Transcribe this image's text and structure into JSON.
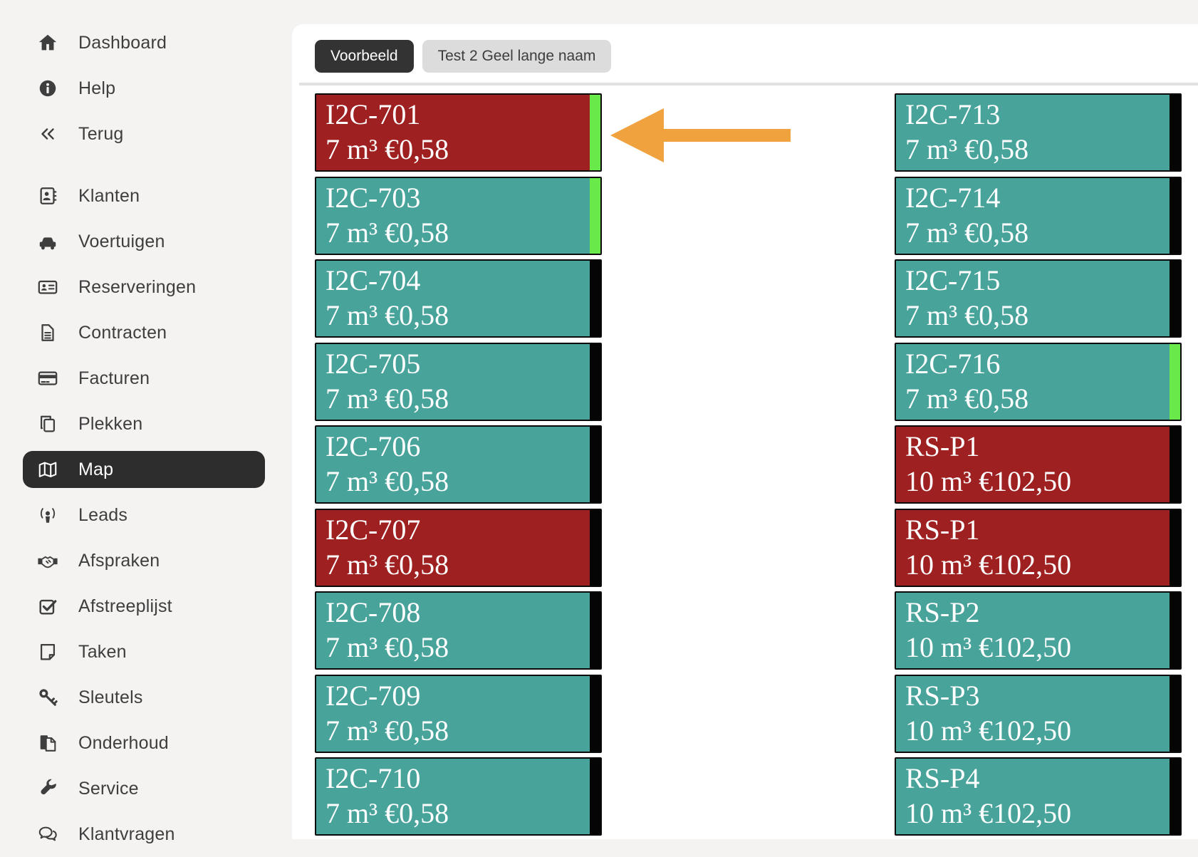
{
  "sidebar": {
    "items": [
      {
        "label": "Dashboard",
        "icon": "home-icon",
        "section": 1,
        "active": false
      },
      {
        "label": "Help",
        "icon": "info-circle-icon",
        "section": 1,
        "active": false
      },
      {
        "label": "Terug",
        "icon": "angles-left-icon",
        "section": 1,
        "active": false
      },
      {
        "label": "Klanten",
        "icon": "address-book-icon",
        "section": 2,
        "active": false
      },
      {
        "label": "Voertuigen",
        "icon": "car-icon",
        "section": 2,
        "active": false
      },
      {
        "label": "Reserveringen",
        "icon": "address-card-icon",
        "section": 2,
        "active": false
      },
      {
        "label": "Contracten",
        "icon": "file-lines-icon",
        "section": 2,
        "active": false
      },
      {
        "label": "Facturen",
        "icon": "credit-card-icon",
        "section": 2,
        "active": false
      },
      {
        "label": "Plekken",
        "icon": "copy-icon",
        "section": 2,
        "active": false
      },
      {
        "label": "Map",
        "icon": "map-icon",
        "section": 2,
        "active": true
      },
      {
        "label": "Leads",
        "icon": "podcast-icon",
        "section": 2,
        "active": false
      },
      {
        "label": "Afspraken",
        "icon": "handshake-icon",
        "section": 2,
        "active": false
      },
      {
        "label": "Afstreeplijst",
        "icon": "check-square-icon",
        "section": 2,
        "active": false
      },
      {
        "label": "Taken",
        "icon": "sticky-note-icon",
        "section": 2,
        "active": false
      },
      {
        "label": "Sleutels",
        "icon": "key-icon",
        "section": 2,
        "active": false
      },
      {
        "label": "Onderhoud",
        "icon": "file-copy-icon",
        "section": 2,
        "active": false
      },
      {
        "label": "Service",
        "icon": "wrench-icon",
        "section": 2,
        "active": false
      },
      {
        "label": "Klantvragen",
        "icon": "comments-icon",
        "section": 2,
        "active": false
      }
    ]
  },
  "tabs": [
    {
      "label": "Voorbeeld",
      "active": true
    },
    {
      "label": "Test 2 Geel lange naam",
      "active": false
    }
  ],
  "map": {
    "columns": [
      {
        "units": [
          {
            "name": "I2C-701",
            "details": "7 m³ €0,58",
            "color": "#9e2020",
            "strip": "#69e94a"
          },
          {
            "name": "I2C-703",
            "details": "7 m³ €0,58",
            "color": "#48a39b",
            "strip": "#69e94a"
          },
          {
            "name": "I2C-704",
            "details": "7 m³ €0,58",
            "color": "#48a39b",
            "strip": "#050505"
          },
          {
            "name": "I2C-705",
            "details": "7 m³ €0,58",
            "color": "#48a39b",
            "strip": "#050505"
          },
          {
            "name": "I2C-706",
            "details": "7 m³ €0,58",
            "color": "#48a39b",
            "strip": "#050505"
          },
          {
            "name": "I2C-707",
            "details": "7 m³ €0,58",
            "color": "#9e2020",
            "strip": "#050505"
          },
          {
            "name": "I2C-708",
            "details": "7 m³ €0,58",
            "color": "#48a39b",
            "strip": "#050505"
          },
          {
            "name": "I2C-709",
            "details": "7 m³ €0,58",
            "color": "#48a39b",
            "strip": "#050505"
          },
          {
            "name": "I2C-710",
            "details": "7 m³ €0,58",
            "color": "#48a39b",
            "strip": "#050505"
          }
        ]
      },
      {
        "units": [
          {
            "name": "I2C-713",
            "details": "7 m³ €0,58",
            "color": "#48a39b",
            "strip": "#050505"
          },
          {
            "name": "I2C-714",
            "details": "7 m³ €0,58",
            "color": "#48a39b",
            "strip": "#050505"
          },
          {
            "name": "I2C-715",
            "details": "7 m³ €0,58",
            "color": "#48a39b",
            "strip": "#050505"
          },
          {
            "name": "I2C-716",
            "details": "7 m³ €0,58",
            "color": "#48a39b",
            "strip": "#69e94a"
          },
          {
            "name": "RS-P1",
            "details": "10 m³ €102,50",
            "color": "#9e2020",
            "strip": "#050505"
          },
          {
            "name": "RS-P1",
            "details": "10 m³ €102,50",
            "color": "#9e2020",
            "strip": "#050505"
          },
          {
            "name": "RS-P2",
            "details": "10 m³ €102,50",
            "color": "#48a39b",
            "strip": "#050505"
          },
          {
            "name": "RS-P3",
            "details": "10 m³ €102,50",
            "color": "#48a39b",
            "strip": "#050505"
          },
          {
            "name": "RS-P4",
            "details": "10 m³ €102,50",
            "color": "#48a39b",
            "strip": "#050505"
          }
        ]
      }
    ]
  },
  "annotation": {
    "arrow_icon": "left-arrow-icon",
    "points_at": "I2C-701"
  },
  "colors": {
    "page_bg": "#f4f3f1",
    "panel_bg": "#ffffff",
    "sidebar_text": "#3e3e3e",
    "sidebar_active_bg": "#2d2d2d",
    "sidebar_active_text": "#ffffff",
    "active_tab_bg": "#333333",
    "active_tab_text": "#ffffff",
    "inactive_tab_bg": "#dcdcdc",
    "inactive_tab_text": "#3d3d3d",
    "unit_text": "#ffffff",
    "unit_border": "#0b0b0b",
    "arrow": "#f0a23e"
  }
}
